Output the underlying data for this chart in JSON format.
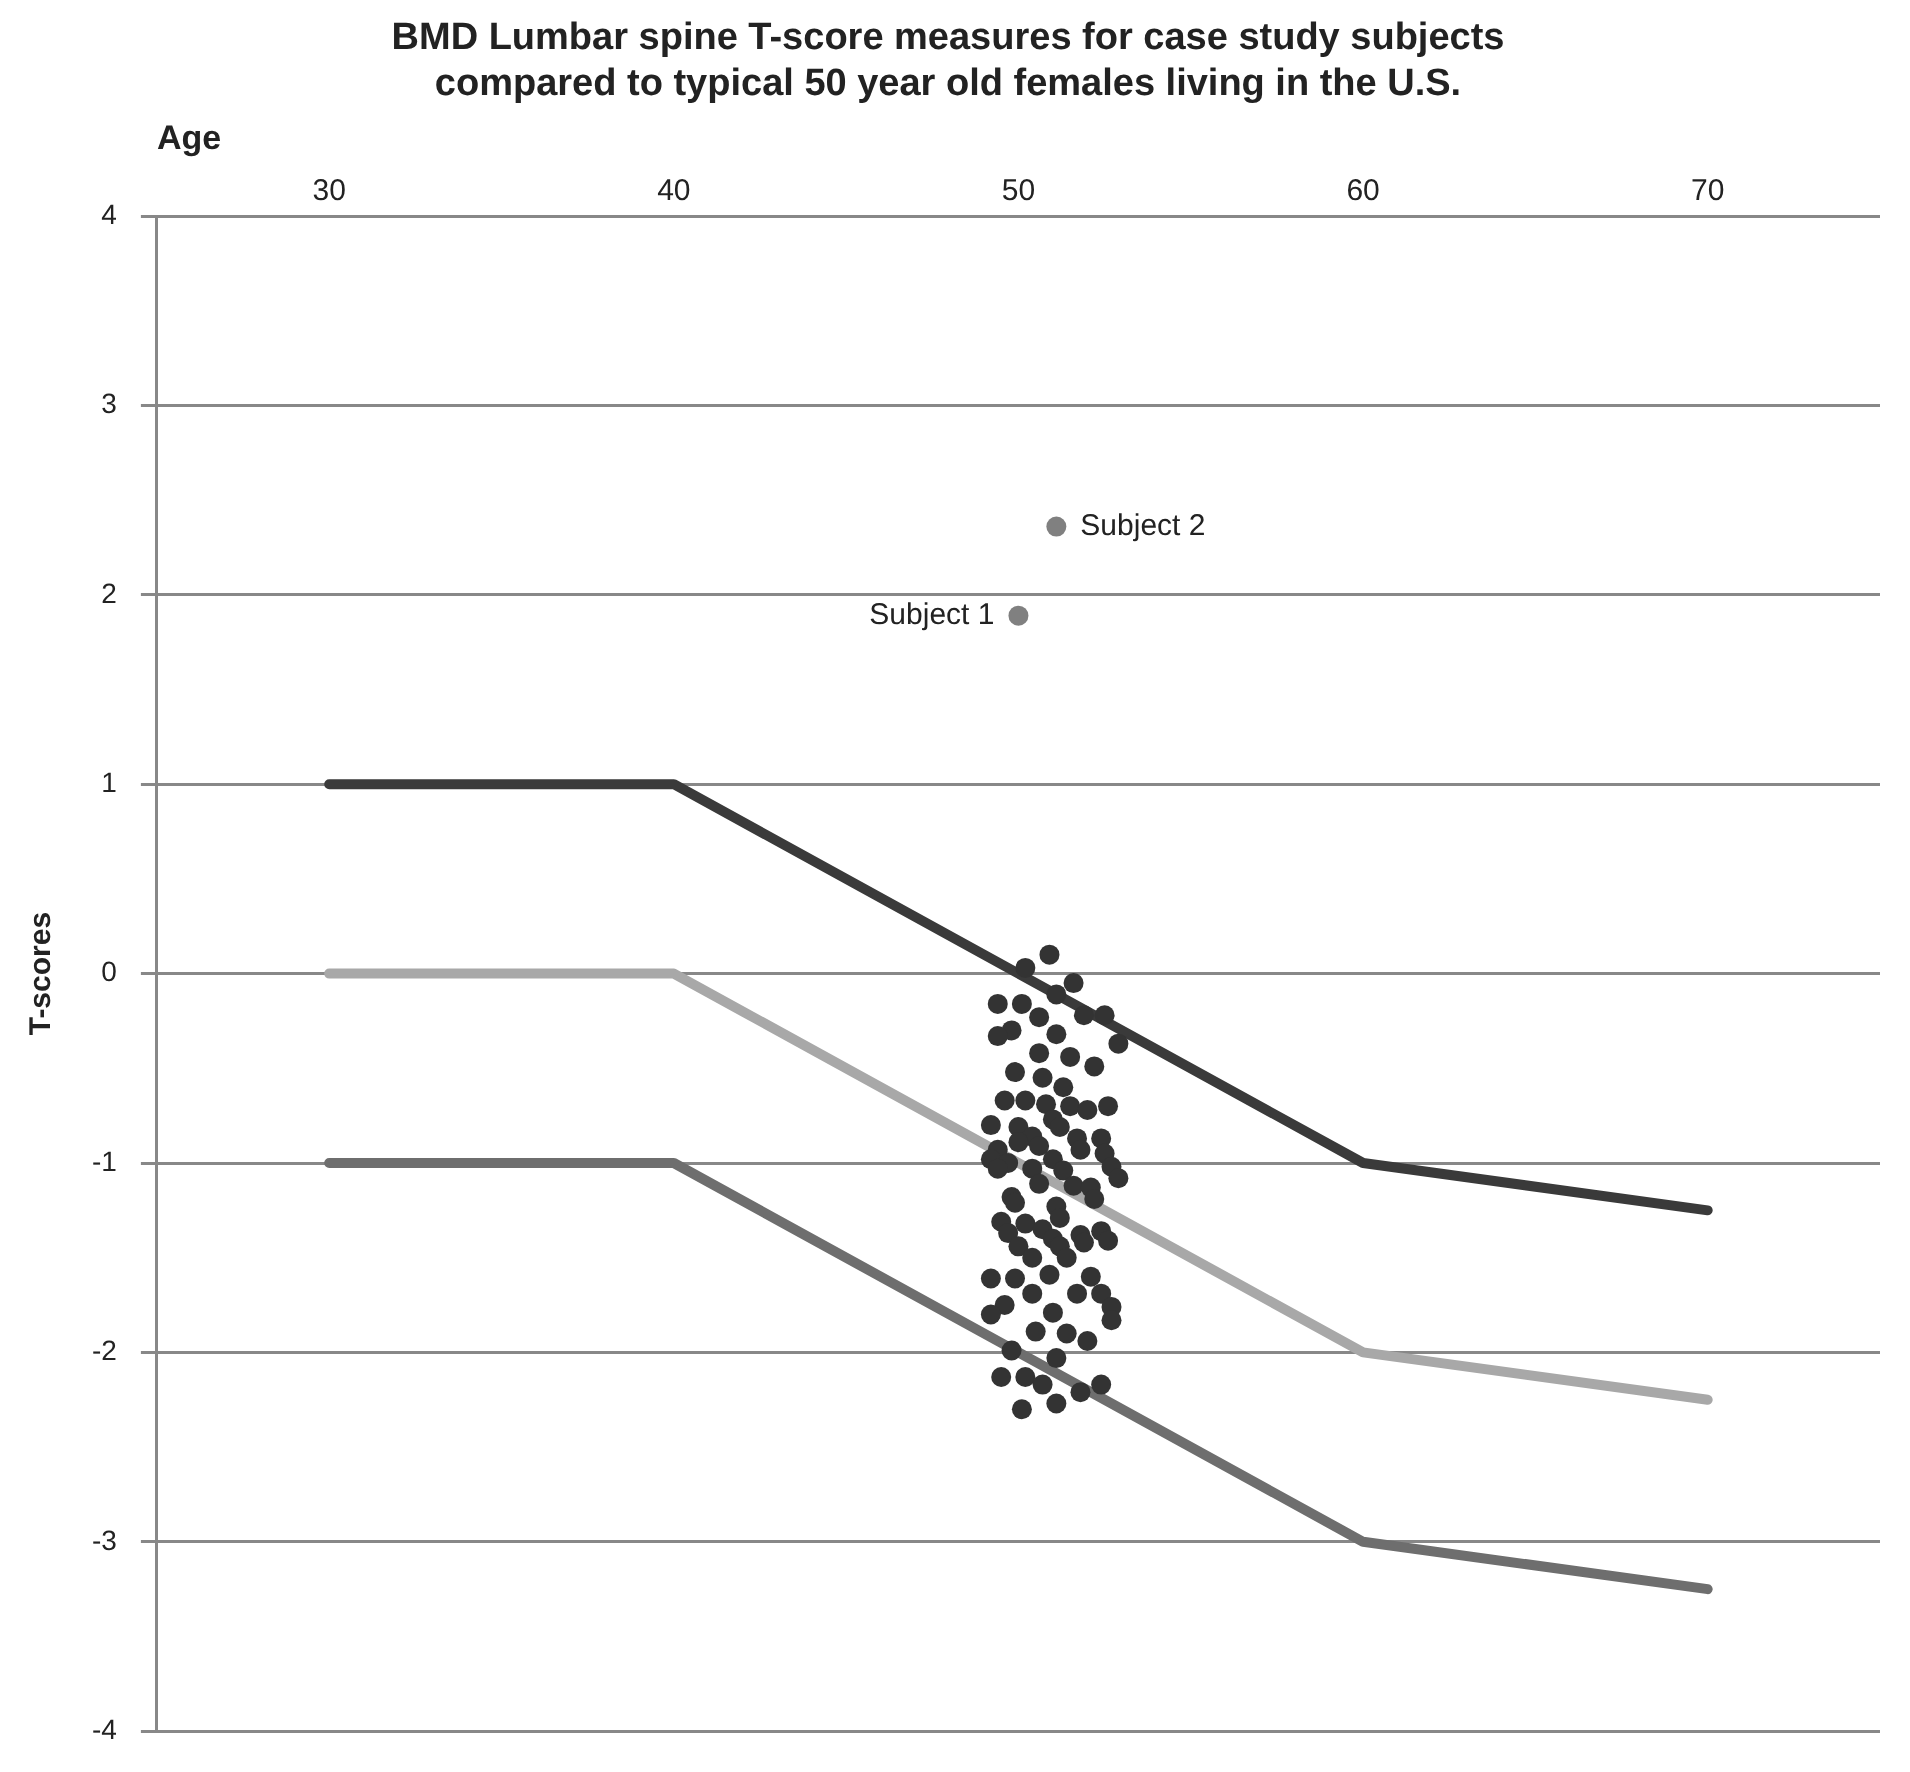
{
  "chart_data": {
    "type": "scatter",
    "title": "BMD Lumbar spine T-score measures for case study subjects\ncompared to typical 50 year old females living in the U.S.",
    "xlabel": "Age",
    "ylabel": "T-scores",
    "xlim": [
      25,
      75
    ],
    "xticks": [
      30,
      40,
      50,
      60,
      70
    ],
    "ylim": [
      -4,
      4
    ],
    "yticks": [
      -4,
      -3,
      -2,
      -1,
      0,
      1,
      2,
      3,
      4
    ],
    "grid": "y",
    "legend": false,
    "marker": "circle",
    "series": [
      {
        "type": "line",
        "marker": "none",
        "color": "#3a3a3a",
        "x": [
          30,
          40,
          60,
          70
        ],
        "values": [
          1,
          1,
          -1,
          -1.25
        ]
      },
      {
        "type": "line",
        "marker": "none",
        "color": "#a8a8a8",
        "x": [
          30,
          40,
          60,
          70
        ],
        "values": [
          0,
          0,
          -2,
          -2.25
        ]
      },
      {
        "type": "line",
        "marker": "none",
        "color": "#6e6e6e",
        "x": [
          30,
          40,
          60,
          70
        ],
        "values": [
          -1,
          -1,
          -3,
          -3.25
        ]
      },
      {
        "color": "#333333",
        "x": [
          50.9,
          50.2,
          51.6,
          51.1,
          49.4,
          50.1,
          50.6,
          51.9,
          52.5,
          49.8,
          49.4,
          51.1,
          52.9,
          50.6,
          51.5,
          52.2,
          49.9,
          50.7,
          51.3,
          49.6,
          50.2,
          50.8,
          51.5,
          52.0,
          52.6,
          51.0,
          49.2,
          50.0,
          51.2,
          50.4,
          51.7,
          52.4,
          49.4,
          50.6,
          50.0,
          51.8,
          52.5,
          49.2,
          49.7,
          51.0,
          50.4,
          51.3,
          52.7,
          49.4,
          50.6,
          51.6,
          52.1,
          52.9,
          49.8,
          52.2,
          51.1,
          49.9,
          51.2,
          49.5,
          50.2,
          50.7,
          49.7,
          51.0,
          51.8,
          52.4,
          50.0,
          51.2,
          51.9,
          52.6,
          50.4,
          51.4,
          49.2,
          49.9,
          50.9,
          52.1,
          50.4,
          51.7,
          52.4,
          49.6,
          49.2,
          51.0,
          52.7,
          52.7,
          50.5,
          51.4,
          52.0,
          49.8,
          51.1,
          49.5,
          50.2,
          50.7,
          51.8,
          52.4,
          50.1,
          51.1
        ],
        "values": [
          0.1,
          0.03,
          -0.05,
          -0.11,
          -0.16,
          -0.16,
          -0.23,
          -0.22,
          -0.22,
          -0.3,
          -0.33,
          -0.32,
          -0.37,
          -0.42,
          -0.44,
          -0.49,
          -0.52,
          -0.55,
          -0.6,
          -0.67,
          -0.67,
          -0.69,
          -0.7,
          -0.72,
          -0.7,
          -0.77,
          -0.8,
          -0.81,
          -0.81,
          -0.86,
          -0.87,
          -0.87,
          -0.93,
          -0.91,
          -0.89,
          -0.93,
          -0.95,
          -0.98,
          -1.0,
          -0.98,
          -1.03,
          -1.04,
          -1.02,
          -1.03,
          -1.11,
          -1.12,
          -1.13,
          -1.08,
          -1.18,
          -1.19,
          -1.23,
          -1.21,
          -1.29,
          -1.31,
          -1.32,
          -1.35,
          -1.37,
          -1.4,
          -1.38,
          -1.36,
          -1.44,
          -1.44,
          -1.42,
          -1.41,
          -1.5,
          -1.5,
          -1.61,
          -1.61,
          -1.59,
          -1.6,
          -1.69,
          -1.69,
          -1.69,
          -1.75,
          -1.8,
          -1.79,
          -1.76,
          -1.83,
          -1.89,
          -1.9,
          -1.94,
          -1.99,
          -2.03,
          -2.13,
          -2.13,
          -2.17,
          -2.21,
          -2.17,
          -2.3,
          -2.27
        ]
      },
      {
        "name": "Subject 1",
        "color": "#808080",
        "x": [
          50.0
        ],
        "values": [
          1.89
        ]
      },
      {
        "name": "Subject 2",
        "color": "#808080",
        "x": [
          51.1
        ],
        "values": [
          2.36
        ]
      }
    ]
  }
}
